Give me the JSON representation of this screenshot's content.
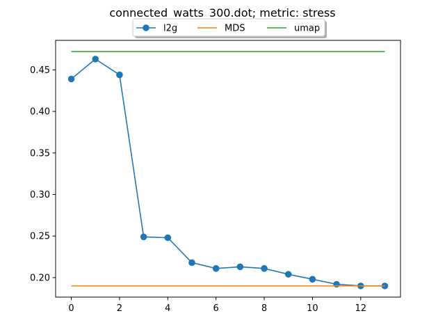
{
  "chart_data": {
    "type": "line",
    "title": "connected_watts_300.dot; metric: stress",
    "xlabel": "",
    "ylabel": "",
    "xlim": [
      -0.65,
      13.65
    ],
    "ylim": [
      0.1765,
      0.4855
    ],
    "xticks": [
      0,
      2,
      4,
      6,
      8,
      10,
      12
    ],
    "yticks": [
      0.2,
      0.25,
      0.3,
      0.35,
      0.4,
      0.45
    ],
    "grid": false,
    "legend_position": "top-center",
    "series": [
      {
        "name": "l2g",
        "color": "#1f77b4",
        "marker": "circle",
        "x": [
          0,
          1,
          2,
          3,
          4,
          5,
          6,
          7,
          8,
          9,
          10,
          11,
          12,
          13
        ],
        "y": [
          0.439,
          0.463,
          0.444,
          0.249,
          0.248,
          0.218,
          0.211,
          0.213,
          0.211,
          0.204,
          0.198,
          0.192,
          0.19,
          0.19
        ]
      },
      {
        "name": "MDS",
        "color": "#ff7f0e",
        "marker": "none",
        "x": [
          0,
          1,
          2,
          3,
          4,
          5,
          6,
          7,
          8,
          9,
          10,
          11,
          12,
          13
        ],
        "y": [
          0.19,
          0.19,
          0.19,
          0.19,
          0.19,
          0.19,
          0.19,
          0.19,
          0.19,
          0.19,
          0.19,
          0.19,
          0.19,
          0.19
        ]
      },
      {
        "name": "umap",
        "color": "#2ca02c",
        "marker": "none",
        "x": [
          0,
          1,
          2,
          3,
          4,
          5,
          6,
          7,
          8,
          9,
          10,
          11,
          12,
          13
        ],
        "y": [
          0.472,
          0.472,
          0.472,
          0.472,
          0.472,
          0.472,
          0.472,
          0.472,
          0.472,
          0.472,
          0.472,
          0.472,
          0.472,
          0.472
        ]
      }
    ]
  }
}
